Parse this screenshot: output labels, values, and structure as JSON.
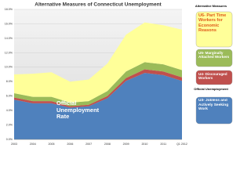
{
  "chart_data": {
    "type": "area",
    "title": "Alternative Measures of Connecticut Unemployment",
    "categories": [
      "2003",
      "2004",
      "2005",
      "2006",
      "2007",
      "2008",
      "2009",
      "2010",
      "2011",
      "Q1 2012"
    ],
    "stacked": true,
    "series": [
      {
        "name": "U3- Jobless and Actively Seeking Work",
        "color": "#4f81bd",
        "values": [
          5.5,
          5.0,
          5.0,
          4.4,
          4.6,
          5.7,
          8.1,
          9.2,
          8.9,
          8.1
        ]
      },
      {
        "name": "U4- Discouraged Workers",
        "color": "#c0504d",
        "values": [
          0.3,
          0.3,
          0.3,
          0.2,
          0.2,
          0.3,
          0.4,
          0.5,
          0.5,
          0.5
        ]
      },
      {
        "name": "U5- Marginally Attached Workers",
        "color": "#9bbb59",
        "values": [
          0.6,
          0.6,
          0.6,
          0.5,
          0.5,
          0.7,
          0.9,
          1.0,
          1.0,
          1.0
        ]
      },
      {
        "name": "U6- Part Time Workers for Economic Reasons",
        "color": "#ffff99",
        "values": [
          2.6,
          3.2,
          3.4,
          2.9,
          3.0,
          3.8,
          5.1,
          5.5,
          5.4,
          5.6
        ]
      }
    ],
    "legend_headers": [
      "Alternative Measures",
      "Official Unemployment"
    ],
    "annotations": [
      "Official Unemployment Rate"
    ],
    "ylim": [
      0,
      18
    ],
    "yticks": [
      {
        "value": 0,
        "label": "0.0%"
      },
      {
        "value": 2,
        "label": "2.0%"
      },
      {
        "value": 4,
        "label": "4.0%"
      },
      {
        "value": 6,
        "label": "6.0%"
      },
      {
        "value": 8,
        "label": "8.0%"
      },
      {
        "value": 10,
        "label": "10.0%"
      },
      {
        "value": 12,
        "label": "12.0%"
      },
      {
        "value": 14,
        "label": "14.0%"
      },
      {
        "value": 16,
        "label": "16.0%"
      },
      {
        "value": 18,
        "label": "18.0%"
      }
    ],
    "grid": true
  }
}
